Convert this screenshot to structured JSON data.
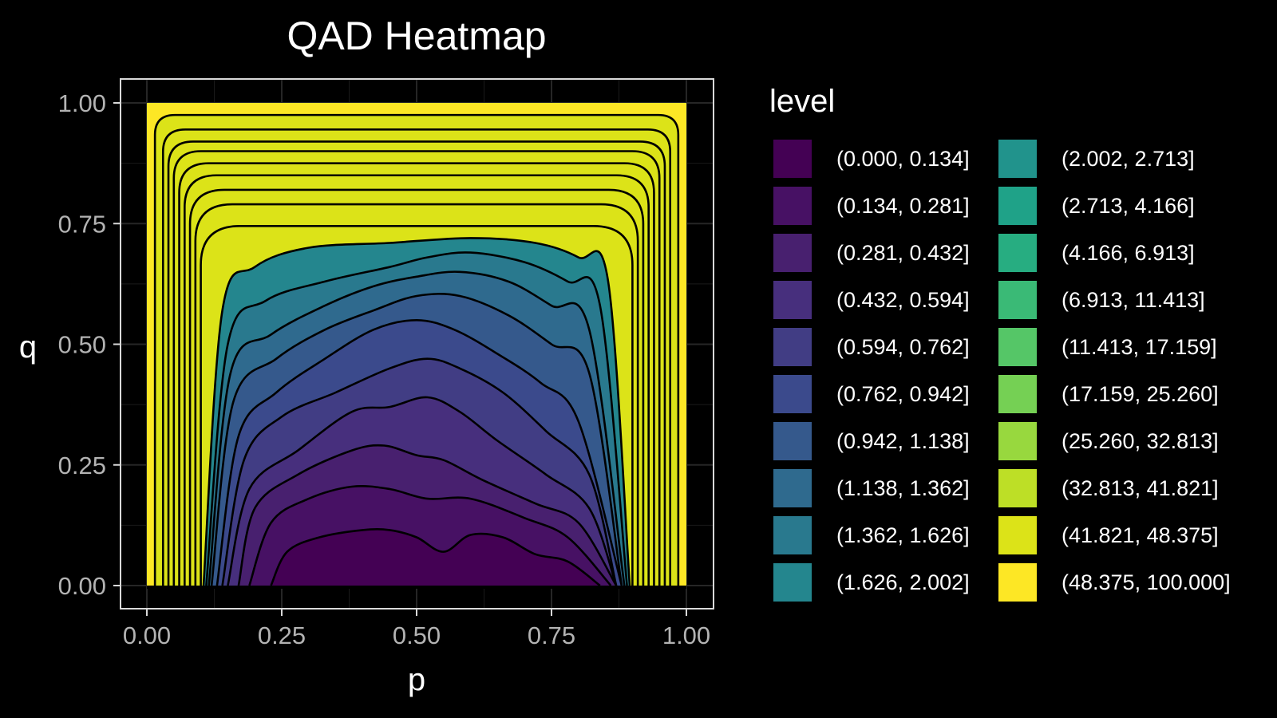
{
  "chart_data": {
    "type": "heatmap",
    "subtype": "filled-contour",
    "title": "QAD Heatmap",
    "xlabel": "p",
    "ylabel": "q",
    "xlim": [
      0,
      1
    ],
    "ylim": [
      0,
      1
    ],
    "x_ticks": [
      0,
      0.25,
      0.5,
      0.75,
      1
    ],
    "x_tick_labels": [
      "0.00",
      "0.25",
      "0.50",
      "0.75",
      "1.00"
    ],
    "y_ticks": [
      0,
      0.25,
      0.5,
      0.75,
      1
    ],
    "y_tick_labels": [
      "0.00",
      "0.25",
      "0.50",
      "0.75",
      "1.00"
    ],
    "grid": true,
    "legend": {
      "title": "level",
      "position": "right",
      "columns": 2,
      "entries": [
        {
          "label": "(0.000, 0.134]",
          "color": "#440154"
        },
        {
          "label": "(0.134, 0.281]",
          "color": "#471164"
        },
        {
          "label": "(0.281, 0.432]",
          "color": "#48206F"
        },
        {
          "label": "(0.432, 0.594]",
          "color": "#472F7D"
        },
        {
          "label": "(0.594, 0.762]",
          "color": "#413D84"
        },
        {
          "label": "(0.762, 0.942]",
          "color": "#3B4A8C"
        },
        {
          "label": "(0.942, 1.138]",
          "color": "#35598C"
        },
        {
          "label": "(1.138, 1.362]",
          "color": "#2F6A8E"
        },
        {
          "label": "(1.362, 1.626]",
          "color": "#29798E"
        },
        {
          "label": "(1.626, 2.002]",
          "color": "#24868E"
        },
        {
          "label": "(2.002, 2.713]",
          "color": "#21938C"
        },
        {
          "label": "(2.713, 4.166]",
          "color": "#1FA288"
        },
        {
          "label": "(4.166, 6.913]",
          "color": "#27AD81"
        },
        {
          "label": "(6.913, 11.413]",
          "color": "#3ABA76"
        },
        {
          "label": "(11.413, 17.159]",
          "color": "#55C667"
        },
        {
          "label": "(17.159, 25.260]",
          "color": "#75D054"
        },
        {
          "label": "(25.260, 32.813]",
          "color": "#98D83E"
        },
        {
          "label": "(32.813, 41.821]",
          "color": "#BDDF26"
        },
        {
          "label": "(41.821, 48.375]",
          "color": "#DCE318"
        },
        {
          "label": "(48.375, 100.000]",
          "color": "#FDE725"
        }
      ]
    },
    "contour_levels": [
      0.134,
      0.281,
      0.432,
      0.594,
      0.762,
      0.942,
      1.138,
      1.362,
      1.626,
      2.002,
      2.713,
      4.166,
      6.913,
      11.413,
      17.159,
      25.26,
      32.813,
      41.821,
      48.375
    ],
    "arch_contours": [
      {
        "level": 0.134,
        "x_left": 0.23,
        "x_right": 0.84,
        "top": [
          [
            0.23,
            0.0
          ],
          [
            0.26,
            0.07
          ],
          [
            0.32,
            0.1
          ],
          [
            0.4,
            0.115
          ],
          [
            0.45,
            0.115
          ],
          [
            0.5,
            0.1
          ],
          [
            0.55,
            0.07
          ],
          [
            0.6,
            0.105
          ],
          [
            0.66,
            0.1
          ],
          [
            0.72,
            0.065
          ],
          [
            0.78,
            0.05
          ],
          [
            0.84,
            0.0
          ]
        ]
      },
      {
        "level": 0.281,
        "x_left": 0.19,
        "x_right": 0.86,
        "top": [
          [
            0.19,
            0.0
          ],
          [
            0.23,
            0.13
          ],
          [
            0.3,
            0.18
          ],
          [
            0.38,
            0.205
          ],
          [
            0.45,
            0.2
          ],
          [
            0.52,
            0.18
          ],
          [
            0.6,
            0.18
          ],
          [
            0.7,
            0.14
          ],
          [
            0.78,
            0.1
          ],
          [
            0.86,
            0.0
          ]
        ]
      },
      {
        "level": 0.432,
        "x_left": 0.17,
        "x_right": 0.87,
        "top": [
          [
            0.17,
            0.0
          ],
          [
            0.2,
            0.16
          ],
          [
            0.28,
            0.23
          ],
          [
            0.38,
            0.28
          ],
          [
            0.44,
            0.29
          ],
          [
            0.5,
            0.27
          ],
          [
            0.55,
            0.26
          ],
          [
            0.62,
            0.22
          ],
          [
            0.72,
            0.17
          ],
          [
            0.8,
            0.13
          ],
          [
            0.87,
            0.0
          ]
        ]
      },
      {
        "level": 0.594,
        "x_left": 0.15,
        "x_right": 0.87,
        "top": [
          [
            0.15,
            0.0
          ],
          [
            0.19,
            0.2
          ],
          [
            0.28,
            0.28
          ],
          [
            0.38,
            0.36
          ],
          [
            0.45,
            0.37
          ],
          [
            0.52,
            0.39
          ],
          [
            0.58,
            0.36
          ],
          [
            0.65,
            0.3
          ],
          [
            0.74,
            0.23
          ],
          [
            0.82,
            0.16
          ],
          [
            0.87,
            0.0
          ]
        ]
      },
      {
        "level": 0.762,
        "x_left": 0.14,
        "x_right": 0.87,
        "top": [
          [
            0.14,
            0.0
          ],
          [
            0.18,
            0.26
          ],
          [
            0.25,
            0.35
          ],
          [
            0.35,
            0.4
          ],
          [
            0.45,
            0.45
          ],
          [
            0.52,
            0.47
          ],
          [
            0.58,
            0.45
          ],
          [
            0.66,
            0.4
          ],
          [
            0.74,
            0.32
          ],
          [
            0.82,
            0.23
          ],
          [
            0.87,
            0.0
          ]
        ]
      },
      {
        "level": 0.942,
        "x_left": 0.13,
        "x_right": 0.88,
        "top": [
          [
            0.13,
            0.0
          ],
          [
            0.17,
            0.31
          ],
          [
            0.24,
            0.4
          ],
          [
            0.33,
            0.47
          ],
          [
            0.42,
            0.53
          ],
          [
            0.5,
            0.55
          ],
          [
            0.57,
            0.53
          ],
          [
            0.65,
            0.48
          ],
          [
            0.73,
            0.42
          ],
          [
            0.8,
            0.34
          ],
          [
            0.88,
            0.0
          ]
        ]
      },
      {
        "level": 1.138,
        "x_left": 0.12,
        "x_right": 0.88,
        "top": [
          [
            0.12,
            0.0
          ],
          [
            0.16,
            0.38
          ],
          [
            0.24,
            0.47
          ],
          [
            0.33,
            0.53
          ],
          [
            0.42,
            0.57
          ],
          [
            0.5,
            0.6
          ],
          [
            0.58,
            0.6
          ],
          [
            0.67,
            0.56
          ],
          [
            0.75,
            0.5
          ],
          [
            0.82,
            0.44
          ],
          [
            0.88,
            0.0
          ]
        ]
      },
      {
        "level": 1.362,
        "x_left": 0.115,
        "x_right": 0.885,
        "top": [
          [
            0.115,
            0.0
          ],
          [
            0.155,
            0.44
          ],
          [
            0.23,
            0.52
          ],
          [
            0.33,
            0.58
          ],
          [
            0.42,
            0.62
          ],
          [
            0.5,
            0.64
          ],
          [
            0.58,
            0.65
          ],
          [
            0.67,
            0.63
          ],
          [
            0.75,
            0.58
          ],
          [
            0.82,
            0.53
          ],
          [
            0.885,
            0.0
          ]
        ]
      },
      {
        "level": 1.626,
        "x_left": 0.11,
        "x_right": 0.89,
        "top": [
          [
            0.11,
            0.0
          ],
          [
            0.15,
            0.5
          ],
          [
            0.22,
            0.59
          ],
          [
            0.33,
            0.63
          ],
          [
            0.45,
            0.66
          ],
          [
            0.52,
            0.68
          ],
          [
            0.6,
            0.69
          ],
          [
            0.7,
            0.67
          ],
          [
            0.78,
            0.63
          ],
          [
            0.84,
            0.58
          ],
          [
            0.89,
            0.0
          ]
        ]
      },
      {
        "level": 2.002,
        "x_left": 0.105,
        "x_right": 0.895,
        "top": [
          [
            0.105,
            0.0
          ],
          [
            0.14,
            0.57
          ],
          [
            0.2,
            0.66
          ],
          [
            0.3,
            0.7
          ],
          [
            0.45,
            0.71
          ],
          [
            0.6,
            0.72
          ],
          [
            0.72,
            0.71
          ],
          [
            0.8,
            0.68
          ],
          [
            0.855,
            0.63
          ],
          [
            0.895,
            0.0
          ]
        ]
      }
    ],
    "u_contours": [
      {
        "level": 2.713,
        "x_left": 0.1,
        "x_right": 0.9,
        "top": 0.745
      },
      {
        "level": 4.166,
        "x_left": 0.09,
        "x_right": 0.91,
        "top": 0.79
      },
      {
        "level": 6.913,
        "x_left": 0.08,
        "x_right": 0.92,
        "top": 0.82
      },
      {
        "level": 11.413,
        "x_left": 0.07,
        "x_right": 0.93,
        "top": 0.85
      },
      {
        "level": 17.159,
        "x_left": 0.06,
        "x_right": 0.94,
        "top": 0.875
      },
      {
        "level": 25.26,
        "x_left": 0.05,
        "x_right": 0.95,
        "top": 0.9
      },
      {
        "level": 32.813,
        "x_left": 0.04,
        "x_right": 0.96,
        "top": 0.92
      },
      {
        "level": 41.821,
        "x_left": 0.03,
        "x_right": 0.97,
        "top": 0.945
      },
      {
        "level": 48.375,
        "x_left": 0.015,
        "x_right": 0.985,
        "top": 0.975
      }
    ]
  }
}
